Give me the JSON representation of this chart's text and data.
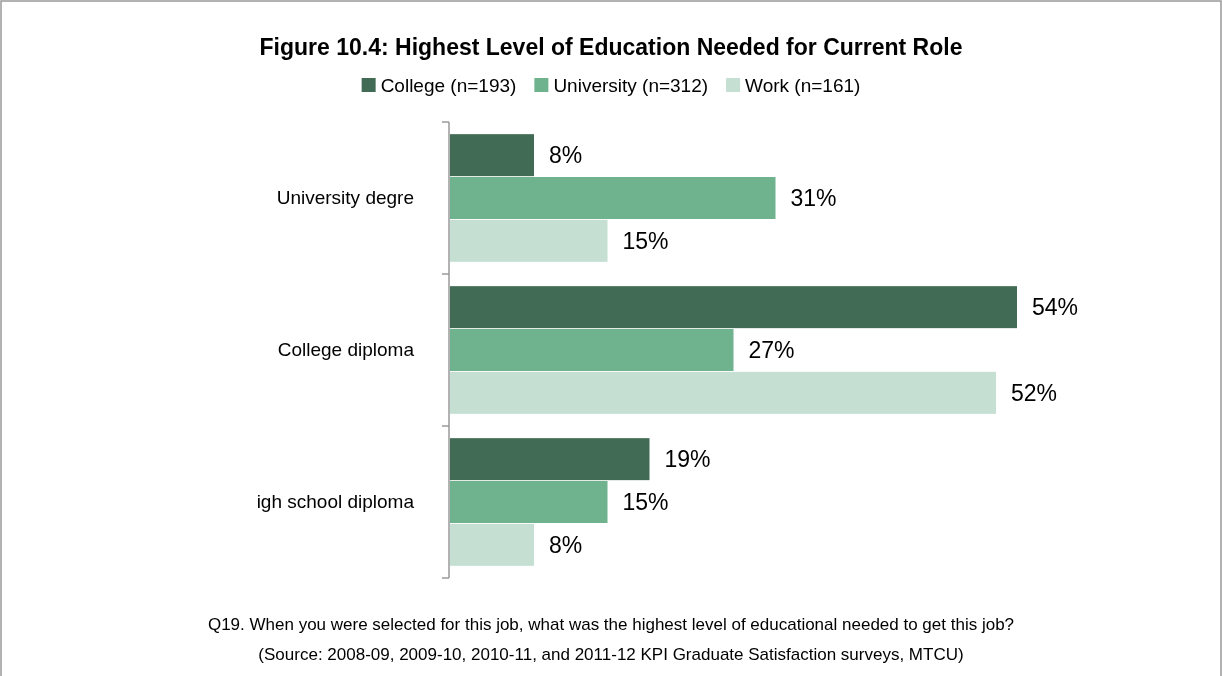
{
  "chart_data": {
    "type": "bar",
    "orientation": "horizontal",
    "title": "Figure 10.4: Highest Level of Education Needed for Current Role",
    "categories": [
      "University degre",
      "College diploma",
      "igh school diploma"
    ],
    "series": [
      {
        "name": "College (n=193)",
        "color": "#426b55",
        "values": [
          8,
          54,
          19
        ],
        "value_labels": [
          "8%",
          "54%",
          "19%"
        ]
      },
      {
        "name": "University (n=312)",
        "color": "#6fb28e",
        "values": [
          31,
          27,
          15
        ],
        "value_labels": [
          "31%",
          "27%",
          "15%"
        ]
      },
      {
        "name": "Work (n=161)",
        "color": "#c5dfd2",
        "values": [
          15,
          52,
          8
        ],
        "value_labels": [
          "15%",
          "52%",
          "8%"
        ]
      }
    ],
    "legend": "top",
    "annotations": [
      "Q19. When you were selected for this job, what was the highest level of educational needed to get this job?",
      "(Source: 2008-09, 2009-10, 2010-11, and 2011-12 KPI Graduate Satisfaction surveys, MTCU)"
    ]
  }
}
